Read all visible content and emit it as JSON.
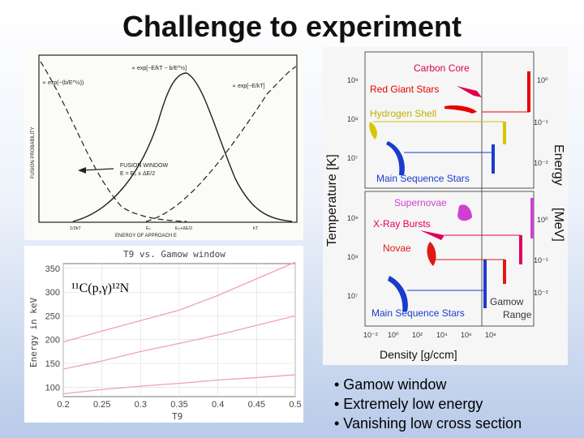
{
  "slide": {
    "title": "Challenge to experiment"
  },
  "fusion_plot": {
    "ylabel": "FUSION PROBABILITY",
    "xlabel": "ENERGY OF APPROACH E",
    "left_formula": "∝ exp(−(b/E^½))",
    "center_formula": "∝ exp[−E/kT − b/E^½]",
    "right_formula": "∝ exp[−E/kT]",
    "window_label": "FUSION WINDOW",
    "window_sub": "E = E₀ ± ΔE/2",
    "ticks": [
      "1/2kT",
      "E₀",
      "E₀+ΔE/2",
      "kT"
    ]
  },
  "gamow_chart": {
    "title": "T9 vs. Gamow window",
    "reaction_label": "¹¹C(p,γ)¹²N",
    "colors": {
      "curve": "#ef9fc2",
      "axis": "#777777",
      "grid": "#dddddd"
    },
    "chart_data": {
      "type": "line",
      "title": "T9 vs. Gamow window",
      "xlabel": "T9",
      "ylabel": "Energy in keV",
      "xlim": [
        0.2,
        0.5
      ],
      "ylim": [
        80,
        360
      ],
      "x_ticks": [
        "0.2",
        "0.25",
        "0.3",
        "0.35",
        "0.4",
        "0.45",
        "0.5"
      ],
      "y_ticks": [
        "100",
        "150",
        "200",
        "250",
        "300",
        "350"
      ],
      "x": [
        0.2,
        0.25,
        0.3,
        0.35,
        0.4,
        0.45,
        0.5
      ],
      "series": [
        {
          "values": [
            195,
            218,
            240,
            262,
            293,
            328,
            363
          ]
        },
        {
          "values": [
            138,
            155,
            175,
            192,
            210,
            230,
            250
          ]
        },
        {
          "values": [
            86,
            95,
            102,
            108,
            115,
            120,
            126
          ]
        }
      ]
    }
  },
  "stars_chart": {
    "ylabel_left": "Temperature [K]",
    "ylabel_right_top": "Energy",
    "ylabel_right_bottom": "[MeV]",
    "xlabel": "Density    [g/ccm]",
    "labels": {
      "carbon_core": "Carbon Core",
      "red_giant": "Red Giant Stars",
      "hydrogen_shell": "Hydrogen Shell",
      "main_seq_top": "Main Sequence Stars",
      "supernovae": "Supernovae",
      "xray_bursts": "X-Ray Bursts",
      "novae": "Novae",
      "main_seq_bottom": "Main Sequence Stars",
      "gamow": "Gamow",
      "range": "Range"
    },
    "left_ticks_top": [
      "10⁹",
      "10⁸",
      "10⁷"
    ],
    "left_ticks_bottom": [
      "10⁹",
      "10⁸",
      "10⁷"
    ],
    "right_ticks_top": [
      "10⁰",
      "10⁻¹",
      "10⁻²"
    ],
    "right_ticks_bottom": [
      "10⁰",
      "10⁻¹",
      "10⁻²"
    ],
    "x_ticks": [
      "10⁻²",
      "10⁰",
      "10²",
      "10⁴",
      "10⁶",
      "10⁸"
    ],
    "colors": {
      "carbon": "#e0004a",
      "red_giant": "#e80000",
      "hydrogen": "#d8c400",
      "main_seq": "#1a3ccc",
      "supernovae": "#d040d0",
      "xray": "#e00060",
      "novae": "#e01818",
      "gamow_bar": "#b0b0b0"
    }
  },
  "bullets": [
    "• Gamow window",
    "• Extremely low energy",
    "• Vanishing low cross section"
  ]
}
